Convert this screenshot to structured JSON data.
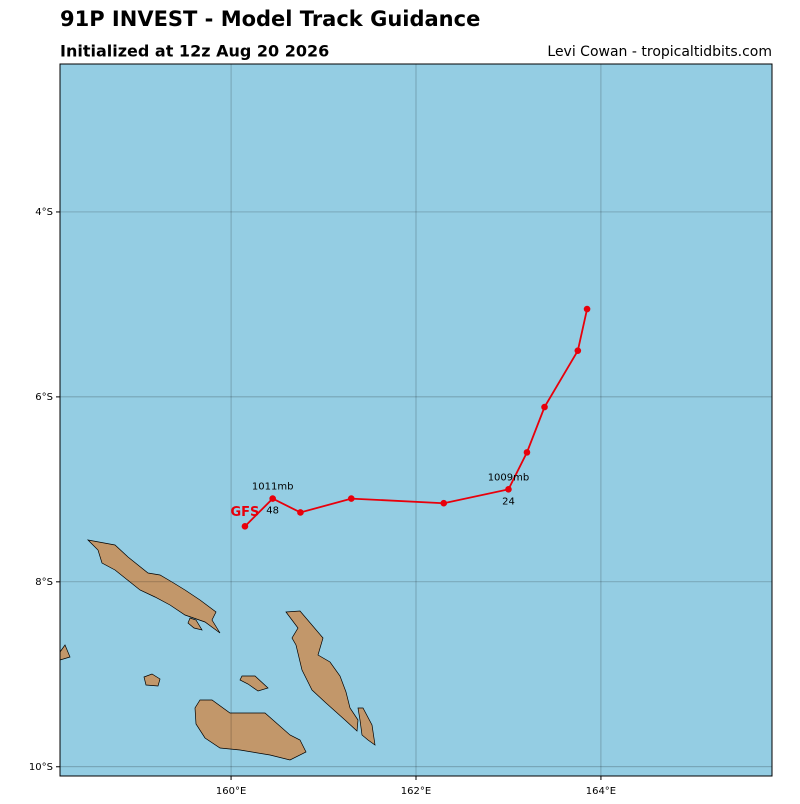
{
  "chart_data": {
    "type": "track",
    "title": "91P INVEST - Model Track Guidance",
    "subtitle": "Initialized at 12z Aug 20 2026",
    "credit": "Levi Cowan - tropicaltidbits.com",
    "background": "#94cde3",
    "land_color": "#c2976a",
    "grid": true,
    "xlim": [
      158.15,
      165.85
    ],
    "ylim": [
      -10.1,
      -2.4
    ],
    "xticks": [
      {
        "value": 160,
        "label": "160°E"
      },
      {
        "value": 162,
        "label": "162°E"
      },
      {
        "value": 164,
        "label": "164°E"
      }
    ],
    "yticks": [
      {
        "value": -4,
        "label": "4°S"
      },
      {
        "value": -6,
        "label": "6°S"
      },
      {
        "value": -8,
        "label": "8°S"
      },
      {
        "value": -10,
        "label": "10°S"
      }
    ],
    "series": [
      {
        "name": "GFS",
        "color": "#e8000b",
        "x": [
          163.85,
          163.75,
          163.39,
          163.2,
          163.0,
          162.3,
          161.3,
          160.75,
          160.45,
          160.15
        ],
        "values": [
          -5.05,
          -5.5,
          -6.11,
          -6.6,
          -7.0,
          -7.15,
          -7.1,
          -7.25,
          -7.1,
          -7.4
        ],
        "hour_labels": [
          null,
          null,
          null,
          null,
          "24",
          null,
          null,
          null,
          "48",
          null
        ],
        "pressure_labels": [
          null,
          null,
          null,
          null,
          "1009mb",
          null,
          null,
          null,
          "1011mb",
          null
        ]
      }
    ]
  }
}
